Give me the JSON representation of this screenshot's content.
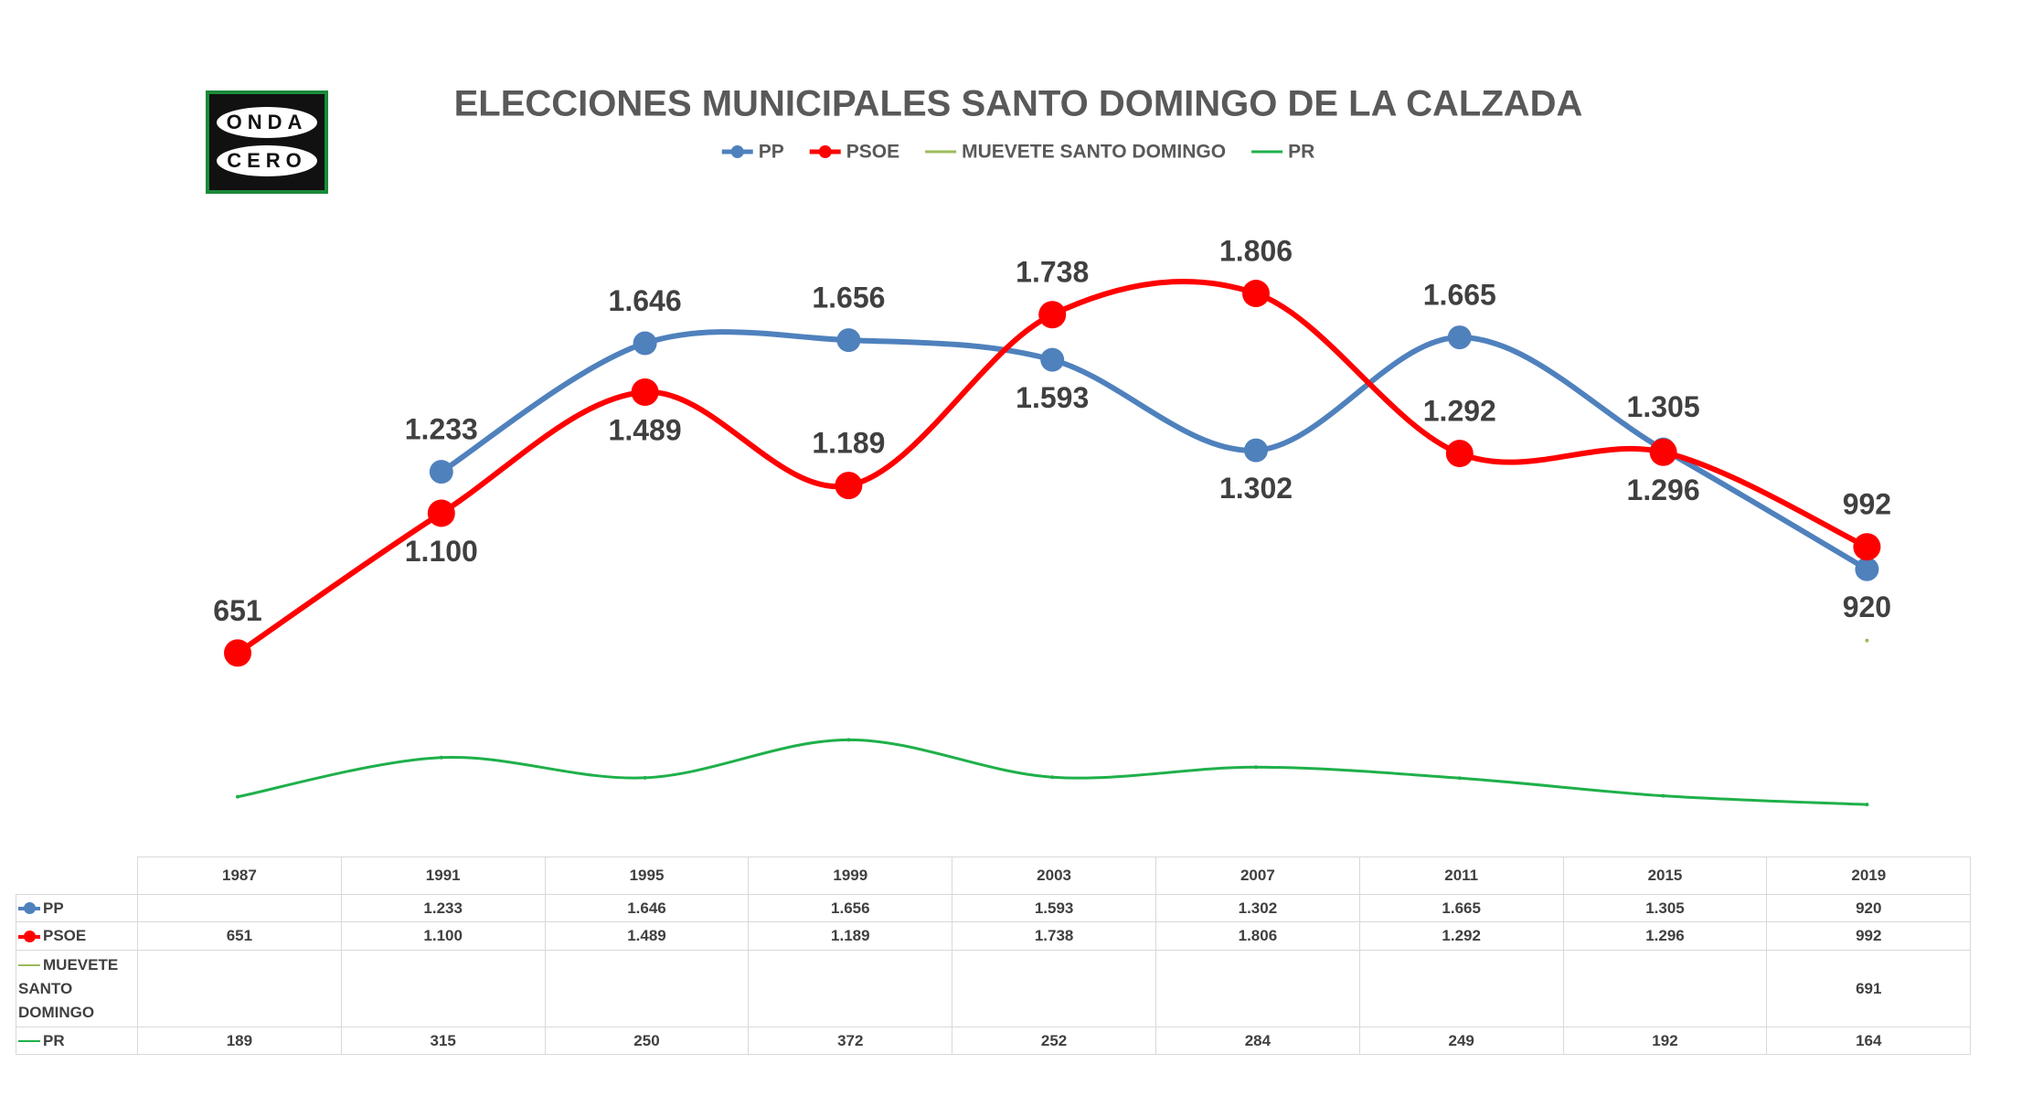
{
  "logo": [
    "ONDA",
    "CERO"
  ],
  "chart_data": {
    "type": "line",
    "title": "ELECCIONES MUNICIPALES SANTO DOMINGO DE LA CALZADA",
    "categories": [
      "1987",
      "1991",
      "1995",
      "1999",
      "2003",
      "2007",
      "2011",
      "2015",
      "2019"
    ],
    "ylim": [
      0,
      2000
    ],
    "smooth": true,
    "legend": "top",
    "series": [
      {
        "name": "PP",
        "color": "#4f81bd",
        "marker": true,
        "values": [
          null,
          1233,
          1646,
          1656,
          1593,
          1302,
          1665,
          1305,
          920
        ],
        "value_labels": [
          null,
          "1.233",
          "1.646",
          "1.656",
          "1.593",
          "1.302",
          "1.665",
          "1.305",
          "920"
        ]
      },
      {
        "name": "PSOE",
        "color": "#ff0000",
        "marker": true,
        "values": [
          651,
          1100,
          1489,
          1189,
          1738,
          1806,
          1292,
          1296,
          992
        ],
        "value_labels": [
          "651",
          "1.100",
          "1.489",
          "1.189",
          "1.738",
          "1.806",
          "1.292",
          "1.296",
          "992"
        ]
      },
      {
        "name": "MUEVETE SANTO DOMINGO",
        "color": "#9bbb59",
        "marker": false,
        "values": [
          null,
          null,
          null,
          null,
          null,
          null,
          null,
          null,
          691
        ]
      },
      {
        "name": "PR",
        "color": "#1fb04a",
        "marker": false,
        "values": [
          189,
          315,
          250,
          372,
          252,
          284,
          249,
          192,
          164
        ]
      }
    ]
  }
}
